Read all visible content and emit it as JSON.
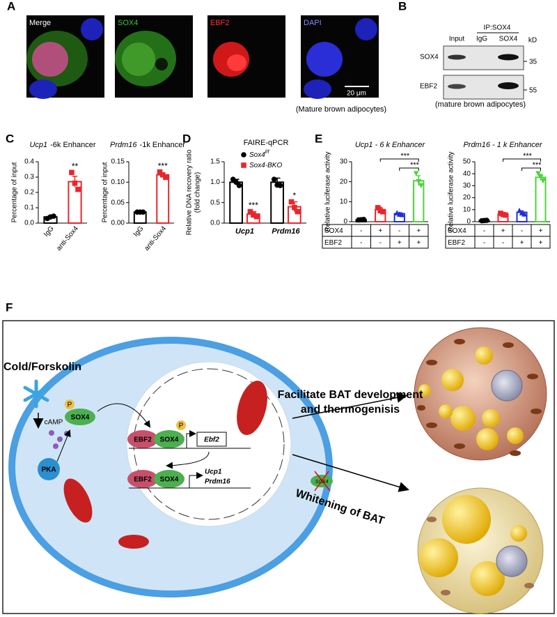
{
  "panel_labels": [
    "A",
    "B",
    "C",
    "D",
    "E",
    "F"
  ],
  "panel_a": {
    "images": [
      {
        "label": "Merge",
        "color": "#ffffff"
      },
      {
        "label": "SOX4",
        "color": "#3cc43c"
      },
      {
        "label": "EBF2",
        "color": "#ff3030"
      },
      {
        "label": "DAPI",
        "color": "#7f8cff"
      }
    ],
    "scale_bar": "20 μm",
    "caption": "(Mature brown adipocytes)"
  },
  "panel_b": {
    "ip": "IP:SOX4",
    "lanes": [
      "Input",
      "IgG",
      "SOX4"
    ],
    "unit": "kD",
    "rows": [
      {
        "label": "SOX4",
        "marker": 35
      },
      {
        "label": "EBF2",
        "marker": 55
      }
    ],
    "caption": "(mature brown adipocytes)"
  },
  "chart_data": [
    {
      "type": "bar",
      "title": [
        {
          "text": "Ucp1",
          "italic": true
        },
        {
          "text": "-6k Enhancer",
          "italic": false
        }
      ],
      "ylabel": "Percentage of input",
      "ylim": [
        0,
        0.4
      ],
      "yticks": [
        {
          "value": 0,
          "label": "0.0"
        },
        0.1,
        0.2,
        0.3,
        0.4
      ],
      "categories": [
        "IgG",
        "anti-Sox4"
      ],
      "colors": [
        "#000000",
        "#e8262b"
      ],
      "markers": [
        "circle",
        "square"
      ],
      "values": [
        0.04,
        0.27
      ],
      "errors": [
        0.008,
        0.035
      ],
      "points": [
        [
          0.03,
          0.04,
          0.045
        ],
        [
          0.33,
          0.26,
          0.22
        ]
      ],
      "significance": [
        null,
        "**"
      ]
    },
    {
      "type": "bar",
      "title": [
        {
          "text": "Prdm16",
          "italic": true
        },
        {
          "text": "-1k Enhancer",
          "italic": false
        }
      ],
      "ylabel": "Percentage of input",
      "ylim": [
        0,
        0.15
      ],
      "yticks": [
        {
          "value": 0,
          "label": "0.00"
        },
        0.05,
        {
          "value": 0.1,
          "label": "0.10"
        },
        {
          "value": 0.15,
          "label": "0.15"
        }
      ],
      "categories": [
        "IgG",
        "anti-Sox4"
      ],
      "colors": [
        "#000000",
        "#e8262b"
      ],
      "markers": [
        "circle",
        "square"
      ],
      "values": [
        0.027,
        0.118
      ],
      "errors": [
        0.001,
        0.005
      ],
      "points": [
        [
          0.027,
          0.027,
          0.027
        ],
        [
          0.125,
          0.118,
          0.112
        ]
      ],
      "significance": [
        null,
        "***"
      ]
    },
    {
      "type": "grouped_bar",
      "title": "FAIRE-qPCR",
      "ylabel": [
        "Relative DNA recovery ratio",
        "(fold change)"
      ],
      "ylim": [
        0,
        1.5
      ],
      "yticks": [
        {
          "value": 0,
          "label": "0.0"
        },
        0.5,
        {
          "value": 1,
          "label": "1.0"
        },
        1.5
      ],
      "categories": [
        "Ucp1",
        "Prdm16"
      ],
      "series": [
        {
          "name": "Sox4",
          "name_sup": "f/f",
          "color": "#000000",
          "marker": "circle",
          "values": [
            1.0,
            1.0
          ],
          "errors": [
            0.07,
            0.1
          ],
          "points": [
            [
              1.07,
              1.0,
              0.92
            ],
            [
              1.07,
              0.93,
              0.92
            ]
          ]
        },
        {
          "name": "Sox4-BKO",
          "color": "#e8262b",
          "marker": "square",
          "values": [
            0.22,
            0.4
          ],
          "errors": [
            0.06,
            0.12
          ],
          "points": [
            [
              0.28,
              0.2,
              0.16
            ],
            [
              0.52,
              0.38,
              0.28
            ]
          ],
          "significance": [
            "***",
            "*"
          ]
        }
      ]
    },
    {
      "type": "bar",
      "title": [
        {
          "text": "Ucp1 - 6 k Enhancer",
          "italic": true
        }
      ],
      "ylabel": "Relative luciferase activity",
      "ylim": [
        0,
        30
      ],
      "yticks": [
        0,
        10,
        20,
        30
      ],
      "categories": [
        null,
        null,
        null,
        null
      ],
      "colors": [
        "#000000",
        "#e8262b",
        "#1f2fd6",
        "#4cd43b"
      ],
      "markers": [
        "circle",
        "square",
        "triangle",
        "triangle-down"
      ],
      "values": [
        1.0,
        6.0,
        4.0,
        20.5
      ],
      "errors": [
        0.2,
        1.2,
        0.5,
        2.5
      ],
      "points": [
        [
          0.9,
          1.0,
          1.1
        ],
        [
          7,
          5.5,
          5
        ],
        [
          4.5,
          3.8,
          3.6
        ],
        [
          24,
          20,
          18
        ]
      ],
      "brackets": [
        {
          "label": "***"
        },
        {
          "label": "***"
        }
      ],
      "table": {
        "rows": [
          {
            "label": "SOX4",
            "cells": [
              "-",
              "+",
              "-",
              "+"
            ]
          },
          {
            "label": "EBF2",
            "cells": [
              "-",
              "-",
              "+",
              "+"
            ]
          }
        ]
      }
    },
    {
      "type": "bar",
      "title": [
        {
          "text": "Prdm16 - 1 k Enhancer",
          "italic": true
        }
      ],
      "ylabel": "Relative luciferase activity",
      "ylim": [
        0,
        50
      ],
      "yticks": [
        0,
        10,
        20,
        30,
        40,
        50
      ],
      "categories": [
        null,
        null,
        null,
        null
      ],
      "colors": [
        "#000000",
        "#e8262b",
        "#1f2fd6",
        "#4cd43b"
      ],
      "markers": [
        "circle",
        "square",
        "triangle",
        "triangle-down"
      ],
      "values": [
        1.0,
        6.3,
        7.8,
        37
      ],
      "errors": [
        0.2,
        1,
        1.2,
        2.5
      ],
      "points": [
        [
          0.8,
          1.0,
          1.1
        ],
        [
          7,
          6,
          5.5
        ],
        [
          9.5,
          7.5,
          6.5
        ],
        [
          40,
          37,
          34
        ]
      ],
      "brackets": [
        {
          "label": "***"
        },
        {
          "label": "***"
        }
      ],
      "table": {
        "rows": [
          {
            "label": "SOX4",
            "cells": [
              "-",
              "+",
              "-",
              "+"
            ]
          },
          {
            "label": "EBF2",
            "cells": [
              "-",
              "-",
              "+",
              "+"
            ]
          }
        ]
      }
    }
  ],
  "panel_f": {
    "stimulus": "Cold/Forskolin",
    "camp": "cAMP",
    "phospho": "P",
    "sox4": "SOX4",
    "pka": "PKA",
    "ebf2": "EBF2",
    "ebf2_gene": "Ebf2",
    "target_genes": [
      "Ucp1",
      "Prdm16"
    ],
    "outcome_up": [
      "Facilitate BAT development",
      "and thermogenisis"
    ],
    "outcome_down": "Whitening of BAT"
  }
}
